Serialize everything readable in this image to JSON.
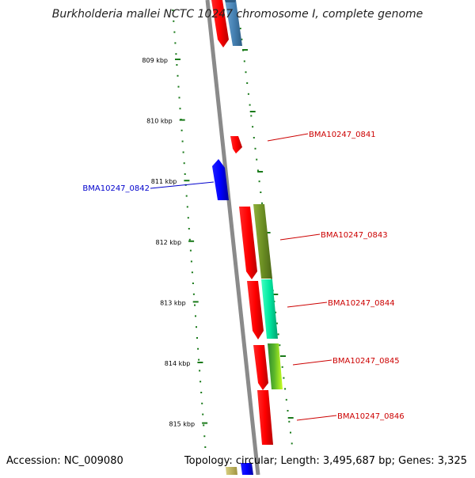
{
  "title": "Burkholderia mallei NCTC 10247 chromosome I, complete genome",
  "accession_text": "Accession: NC_009080",
  "summary_text": "Topology: circular; Length: 3,495,687 bp; Genes: 3,325",
  "ticks": [
    {
      "label": "809 kbp",
      "kbp": 809
    },
    {
      "label": "810 kbp",
      "kbp": 810
    },
    {
      "label": "811 kbp",
      "kbp": 811
    },
    {
      "label": "812 kbp",
      "kbp": 812
    },
    {
      "label": "813 kbp",
      "kbp": 813
    },
    {
      "label": "814 kbp",
      "kbp": 814
    },
    {
      "label": "815 kbp",
      "kbp": 815
    }
  ],
  "gene_labels": [
    {
      "id": "BMA10247_0841",
      "color": "#cc0000"
    },
    {
      "id": "BMA10247_0842",
      "color": "#0000cc"
    },
    {
      "id": "BMA10247_0843",
      "color": "#cc0000"
    },
    {
      "id": "BMA10247_0844",
      "color": "#cc0000"
    },
    {
      "id": "BMA10247_0845",
      "color": "#cc0000"
    },
    {
      "id": "BMA10247_0846",
      "color": "#cc0000"
    }
  ],
  "colors": {
    "backbone": "#8a8a8a",
    "tick_green": "#1a7a1a",
    "forward_gene": "#ff0000",
    "reverse_gene": "#0000ff",
    "cog_blue": "#4682b4",
    "cog_olive": "#6b8e23",
    "cog_aqua": "#00e8a0",
    "cog_lime": "#9acd32"
  }
}
